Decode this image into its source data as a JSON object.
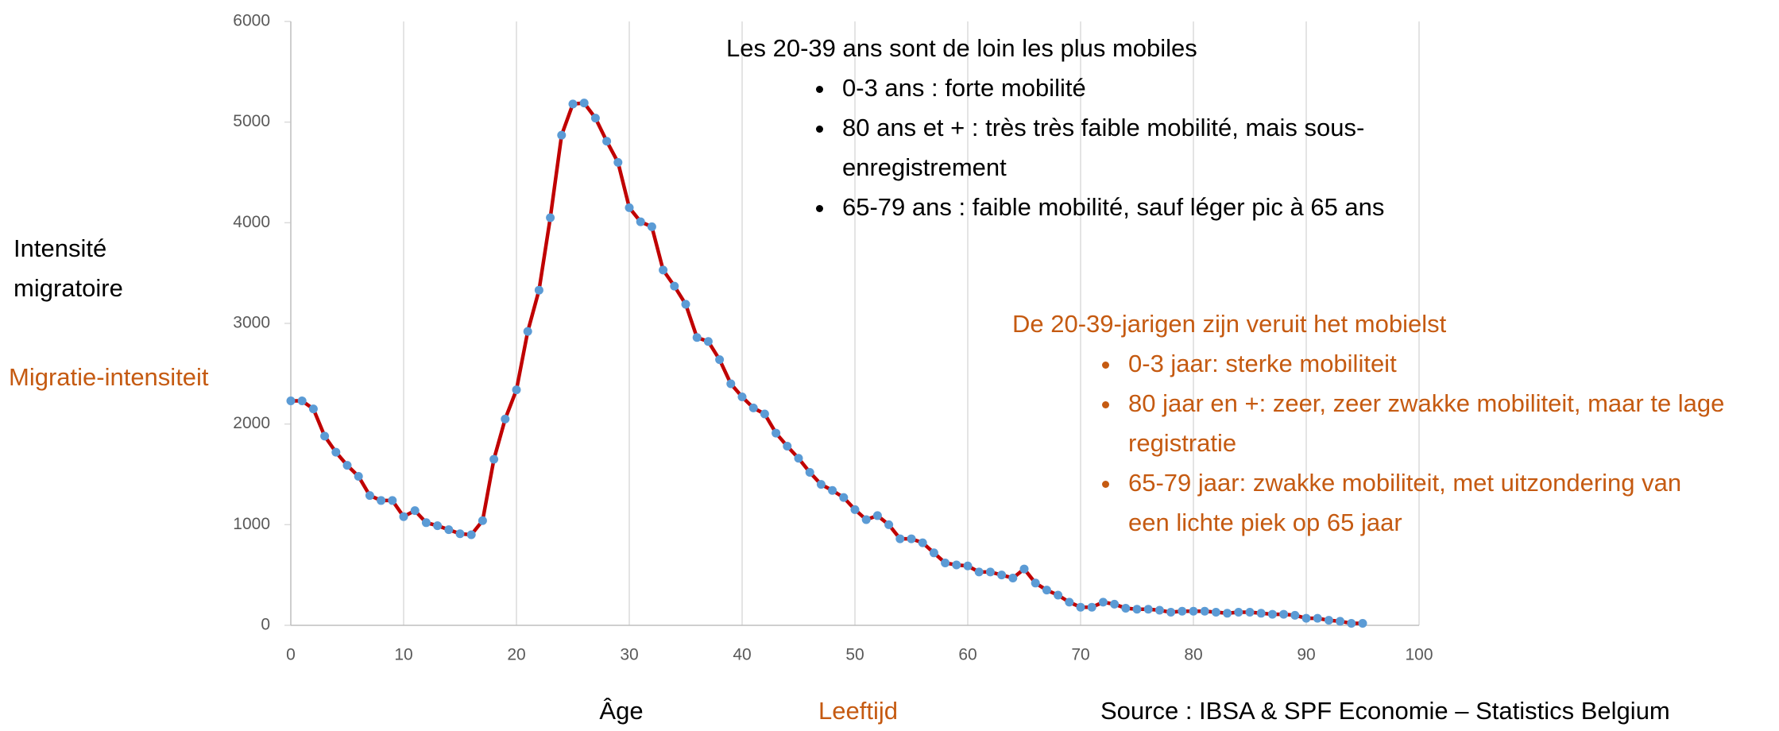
{
  "chart_data": {
    "type": "line",
    "ylabel": "Intensité migratoire",
    "ylabel_nl": "Migratie-intensiteit",
    "xlabel": "Âge",
    "xlabel_nl": "Leeftijd",
    "source": "Source : IBSA & SPF Economie – Statistics Belgium",
    "color": "#c00000",
    "marker_color": "#5b9bd5",
    "grid": true,
    "xlim": [
      0,
      100
    ],
    "xticks": [
      0,
      10,
      20,
      30,
      40,
      50,
      60,
      70,
      80,
      90,
      100
    ],
    "ylim": [
      0,
      6000
    ],
    "yticks": [
      0,
      1000,
      2000,
      3000,
      4000,
      5000,
      6000
    ],
    "x": [
      0,
      1,
      2,
      3,
      4,
      5,
      6,
      7,
      8,
      9,
      10,
      11,
      12,
      13,
      14,
      15,
      16,
      17,
      18,
      19,
      20,
      21,
      22,
      23,
      24,
      25,
      26,
      27,
      28,
      29,
      30,
      31,
      32,
      33,
      34,
      35,
      36,
      37,
      38,
      39,
      40,
      41,
      42,
      43,
      44,
      45,
      46,
      47,
      48,
      49,
      50,
      51,
      52,
      53,
      54,
      55,
      56,
      57,
      58,
      59,
      60,
      61,
      62,
      63,
      64,
      65,
      66,
      67,
      68,
      69,
      70,
      71,
      72,
      73,
      74,
      75,
      76,
      77,
      78,
      79,
      80,
      81,
      82,
      83,
      84,
      85,
      86,
      87,
      88,
      89,
      90,
      91,
      92,
      93,
      94,
      95
    ],
    "values": [
      2230,
      2230,
      2150,
      1880,
      1720,
      1590,
      1480,
      1290,
      1240,
      1240,
      1080,
      1140,
      1020,
      990,
      950,
      910,
      900,
      1040,
      1650,
      2050,
      2340,
      2920,
      3330,
      4050,
      4870,
      5180,
      5190,
      5040,
      4810,
      4600,
      4150,
      4010,
      3960,
      3530,
      3370,
      3190,
      2860,
      2820,
      2640,
      2400,
      2270,
      2160,
      2100,
      1910,
      1780,
      1660,
      1520,
      1400,
      1340,
      1270,
      1150,
      1050,
      1090,
      1000,
      860,
      860,
      820,
      720,
      620,
      600,
      590,
      530,
      530,
      500,
      470,
      560,
      420,
      350,
      300,
      230,
      180,
      180,
      230,
      210,
      170,
      160,
      160,
      150,
      130,
      140,
      140,
      140,
      130,
      120,
      130,
      130,
      120,
      110,
      110,
      100,
      70,
      70,
      50,
      40,
      20,
      20
    ],
    "annotations": [
      {
        "title": "Les 20-39 ans sont de loin les plus mobiles",
        "color": "#000000",
        "items": [
          "0-3 ans : forte mobilité",
          "80 ans et + : très très faible mobilité, mais sous-enregistrement",
          "65-79 ans : faible mobilité, sauf léger pic à 65 ans"
        ]
      },
      {
        "title": "De 20-39-jarigen zijn veruit het mobielst",
        "color": "#c55a11",
        "items": [
          "0-3 jaar: sterke mobiliteit",
          "80 jaar en +: zeer, zeer zwakke mobiliteit, maar te lage registratie",
          "65-79 jaar: zwakke mobiliteit, met uitzondering van een lichte piek op 65 jaar"
        ]
      }
    ]
  }
}
